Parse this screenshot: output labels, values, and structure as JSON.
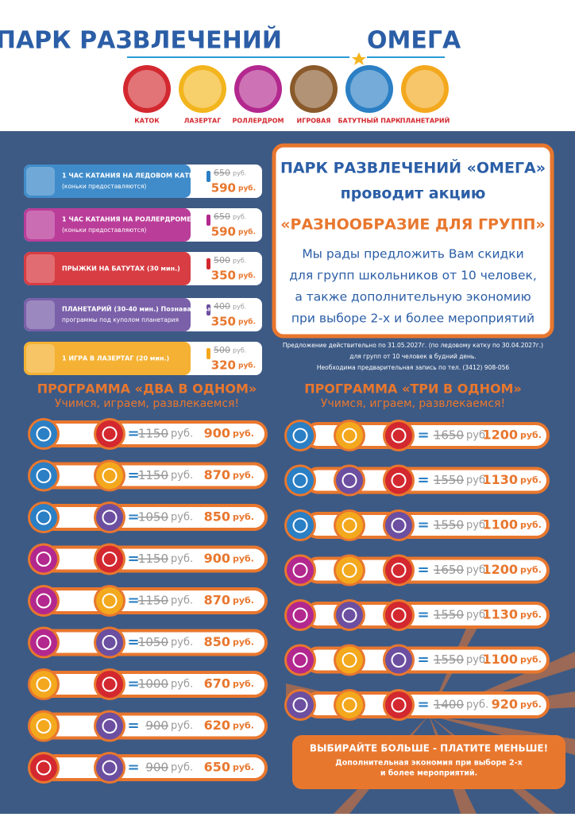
{
  "header": {
    "title": "ПАРК РАЗВЛЕЧЕНИЙ",
    "brand": "ОМЕГА",
    "sections": [
      "КАТОК",
      "ЛАЗЕРТАГ",
      "РОЛЛЕРДРОМ",
      "ИГРОВАЯ",
      "БАТУТНЫЙ ПАРК",
      "ПЛАНЕТАРИЙ"
    ]
  },
  "currency": "руб.",
  "services": [
    {
      "title": "1 ЧАС КАТАНИЯ НА ЛЕДОВОМ КАТКЕ",
      "note": "(коньки предоставляются)",
      "old_price": "650",
      "price": "590"
    },
    {
      "title": "1 ЧАС КАТАНИЯ НА РОЛЛЕРДРОМЕ",
      "note": "(коньки предоставляются)",
      "old_price": "650",
      "price": "590"
    },
    {
      "title": "ПРЫЖКИ НА БАТУТАХ (30 мин.)",
      "old_price": "500",
      "price": "350"
    },
    {
      "title": "ПЛАНЕТАРИЙ (30-40 мин.) Познавательные",
      "note": "программы под куполом планетария",
      "old_price": "400",
      "price": "350"
    },
    {
      "title": "1 ИГРА В ЛАЗЕРТАГ (20 мин.)",
      "old_price": "500",
      "price": "320"
    }
  ],
  "promo": {
    "line1": "ПАРК РАЗВЛЕЧЕНИЙ «ОМЕГА»",
    "line2": "проводит акцию",
    "line3": "«РАЗНООБРАЗИЕ ДЛЯ ГРУПП»",
    "body": [
      "Мы рады предложить Вам скидки",
      "для групп школьников от 10 человек,",
      "а также дополнительную экономию",
      "при выборе 2-х и более мероприятий"
    ]
  },
  "notes": [
    "Предложение действительно по 31.05.2027г. (по ледовому катку по 30.04.2027г.)",
    "для групп от 10 человек в будний день.",
    "Необходима предварительная запись по тел. (3412) 908-056"
  ],
  "program_two": {
    "title": "ПРОГРАММА «ДВА  В ОДНОМ»",
    "subtitle": "Учимся, играем, развлекаемся!",
    "rows": [
      {
        "old_price": "1150",
        "price": "900"
      },
      {
        "old_price": "1150",
        "price": "870"
      },
      {
        "old_price": "1050",
        "price": "850"
      },
      {
        "old_price": "1150",
        "price": "900"
      },
      {
        "old_price": "1150",
        "price": "870"
      },
      {
        "old_price": "1050",
        "price": "850"
      },
      {
        "old_price": "1000",
        "price": "670"
      },
      {
        "old_price": "900",
        "price": "620"
      },
      {
        "old_price": "900",
        "price": "650"
      }
    ]
  },
  "program_three": {
    "title": "ПРОГРАММА «ТРИ  В ОДНОМ»",
    "subtitle": "Учимся, играем, развлекаемся!",
    "rows": [
      {
        "old_price": "1650",
        "price": "1200"
      },
      {
        "old_price": "1550",
        "price": "1130"
      },
      {
        "old_price": "1550",
        "price": "1100"
      },
      {
        "old_price": "1650",
        "price": "1200"
      },
      {
        "old_price": "1550",
        "price": "1130"
      },
      {
        "old_price": "1550",
        "price": "1100"
      },
      {
        "old_price": "1400",
        "price": "920"
      }
    ]
  },
  "footer_box": {
    "title": "ВЫБИРАЙТЕ БОЛЬШЕ - ПЛАТИТЕ МЕНЬШЕ!",
    "lines": [
      "Дополнительная экономия при выборе 2-х",
      "и более мероприятий."
    ]
  }
}
